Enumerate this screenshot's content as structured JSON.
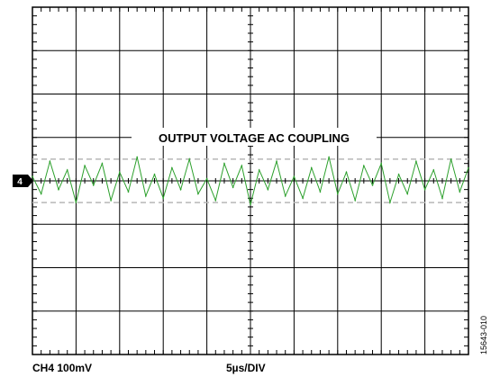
{
  "chart_data": {
    "type": "line",
    "title": "OUTPUT VOLTAGE AC COUPLING",
    "channel_marker": "4",
    "scale_left": "CH4 100mV",
    "scale_center": "5µs/DIV",
    "figure_id": "15643-010",
    "x_divisions": 10,
    "y_divisions": 8,
    "grid": true,
    "series": [
      {
        "color": "#2ca02c",
        "x_unit": "µs",
        "y_unit": "mV",
        "x": [
          0,
          1,
          2,
          3,
          4,
          5,
          6,
          7,
          8,
          9,
          10,
          11,
          12,
          13,
          14,
          15,
          16,
          17,
          18,
          19,
          20,
          21,
          22,
          23,
          24,
          25,
          26,
          27,
          28,
          29,
          30,
          31,
          32,
          33,
          34,
          35,
          36,
          37,
          38,
          39,
          40,
          41,
          42,
          43,
          44,
          45,
          46,
          47,
          48,
          49,
          50
        ],
        "y": [
          10,
          -30,
          45,
          -20,
          25,
          -50,
          35,
          -10,
          40,
          -45,
          20,
          -25,
          55,
          -35,
          15,
          -40,
          30,
          -20,
          50,
          -30,
          5,
          -45,
          40,
          -15,
          35,
          -55,
          25,
          -20,
          45,
          -35,
          10,
          -40,
          30,
          -25,
          55,
          -30,
          20,
          -45,
          35,
          -10,
          40,
          -50,
          15,
          -30,
          45,
          -20,
          25,
          -40,
          50,
          -25,
          30
        ]
      }
    ],
    "reference_lines_mV": [
      50,
      -50
    ],
    "reference_color": "#b8b8b8"
  }
}
